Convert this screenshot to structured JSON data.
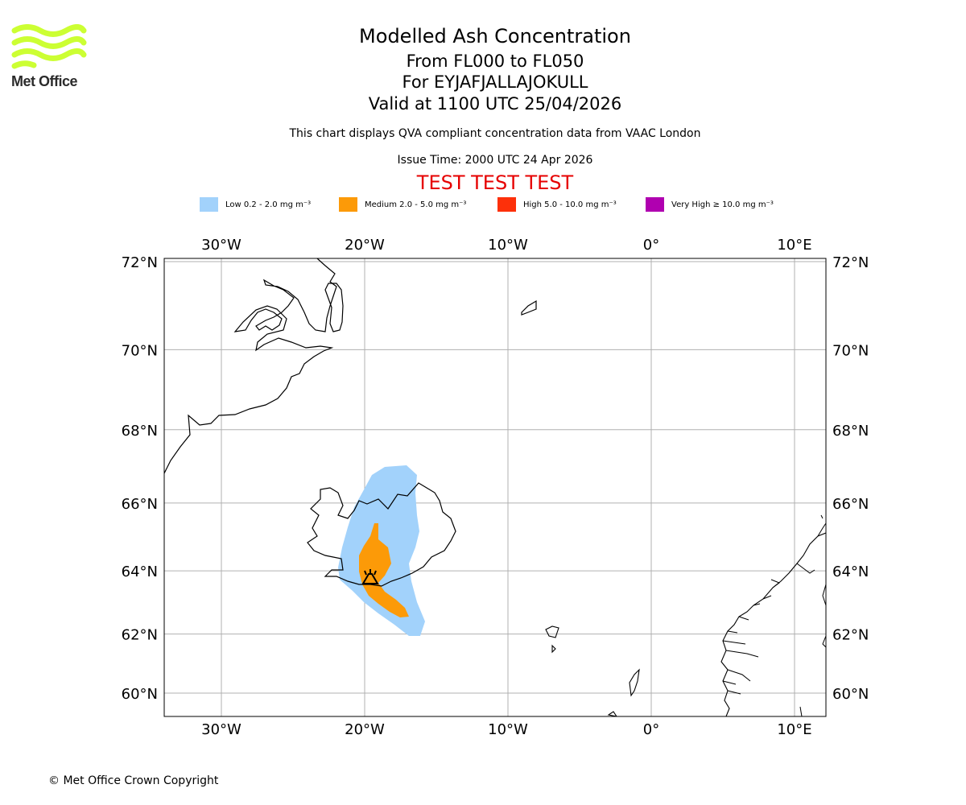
{
  "logo": {
    "text": "Met Office",
    "color": "#ccff33"
  },
  "titles": {
    "main": "Modelled Ash Concentration",
    "level": "From FL000 to FL050",
    "volcano": "For EYJAFJALLAJOKULL",
    "valid": "Valid at 1100 UTC 25/04/2026",
    "description": "This chart displays QVA compliant concentration data from VAAC London",
    "issue": "Issue Time: 2000 UTC 24 Apr 2026",
    "test": "TEST TEST TEST"
  },
  "legend": [
    {
      "label": "Low 0.2 - 2.0 mg m⁻³",
      "color": "#a2d2fb"
    },
    {
      "label": "Medium 2.0 - 5.0 mg m⁻³",
      "color": "#fc9a08"
    },
    {
      "label": "High 5.0 - 10.0 mg m⁻³",
      "color": "#fd300a"
    },
    {
      "label": "Very High ≥ 10.0 mg m⁻³",
      "color": "#b000b0"
    }
  ],
  "axes": {
    "longitudes": [
      {
        "value": -30,
        "label": "30°W"
      },
      {
        "value": -20,
        "label": "20°W"
      },
      {
        "value": -10,
        "label": "10°W"
      },
      {
        "value": 0,
        "label": "0°"
      },
      {
        "value": 10,
        "label": "10°E"
      }
    ],
    "latitudes": [
      {
        "value": 72,
        "label": "72°N"
      },
      {
        "value": 70,
        "label": "70°N"
      },
      {
        "value": 68,
        "label": "68°N"
      },
      {
        "value": 66,
        "label": "66°N"
      },
      {
        "value": 64,
        "label": "64°N"
      },
      {
        "value": 62,
        "label": "62°N"
      },
      {
        "value": 60,
        "label": "60°N"
      }
    ]
  },
  "volcano": {
    "name": "EYJAFJALLAJOKULL",
    "lat": 63.63,
    "lon": -19.62
  },
  "copyright": "© Met Office Crown Copyright"
}
